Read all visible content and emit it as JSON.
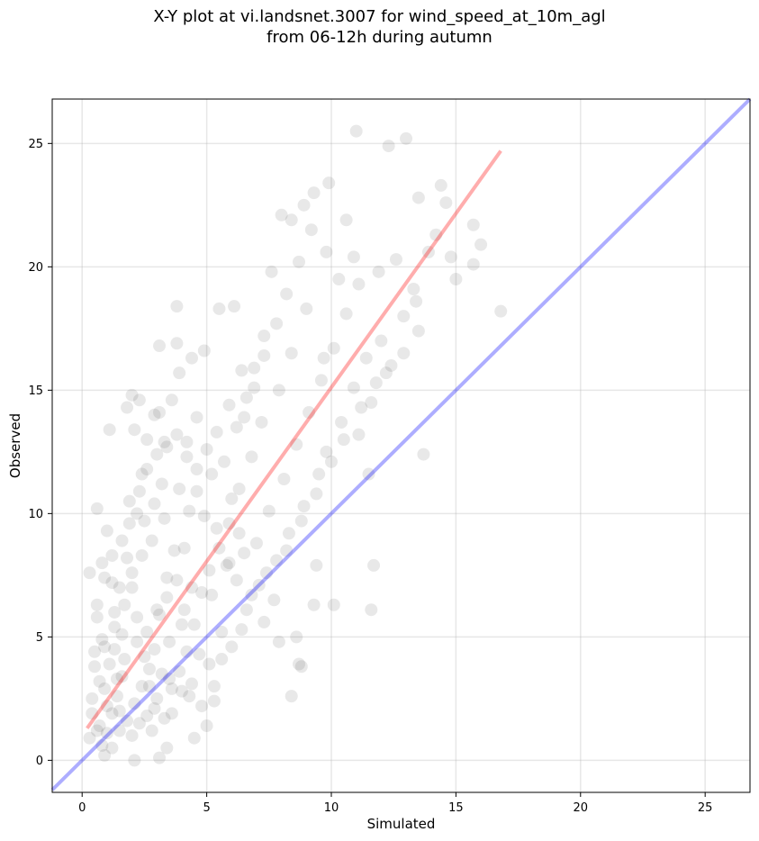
{
  "chart_data": {
    "type": "scatter",
    "title_lines": [
      "X-Y plot at vi.landsnet.3007 for wind_speed_at_10m_agl",
      "from 06-12h during autumn"
    ],
    "xlabel": "Simulated",
    "ylabel": "Observed",
    "xlim": [
      -1.2,
      26.8
    ],
    "ylim": [
      -1.3,
      26.8
    ],
    "xticks": [
      0,
      5,
      10,
      15,
      20,
      25
    ],
    "yticks": [
      0,
      5,
      10,
      15,
      20,
      25
    ],
    "grid": true,
    "point_color": "#000000",
    "point_alpha": 0.09,
    "points": [
      [
        0.3,
        0.9
      ],
      [
        0.4,
        2.5
      ],
      [
        0.5,
        3.8
      ],
      [
        0.3,
        7.6
      ],
      [
        0.6,
        6.3
      ],
      [
        0.8,
        8.0
      ],
      [
        0.6,
        10.2
      ],
      [
        1.1,
        13.4
      ],
      [
        1.0,
        9.3
      ],
      [
        1.2,
        7.2
      ],
      [
        0.9,
        4.6
      ],
      [
        0.7,
        1.4
      ],
      [
        0.9,
        0.2
      ],
      [
        1.2,
        0.5
      ],
      [
        1.5,
        2.0
      ],
      [
        1.4,
        3.3
      ],
      [
        1.6,
        5.1
      ],
      [
        1.3,
        6.0
      ],
      [
        1.8,
        8.2
      ],
      [
        1.9,
        10.5
      ],
      [
        1.8,
        14.3
      ],
      [
        2.0,
        14.8
      ],
      [
        2.3,
        14.6
      ],
      [
        2.1,
        13.4
      ],
      [
        2.6,
        13.0
      ],
      [
        2.9,
        14.0
      ],
      [
        3.1,
        14.1
      ],
      [
        3.3,
        12.9
      ],
      [
        3.6,
        14.6
      ],
      [
        3.9,
        15.7
      ],
      [
        4.4,
        16.3
      ],
      [
        4.9,
        16.6
      ],
      [
        5.5,
        18.3
      ],
      [
        6.1,
        18.4
      ],
      [
        6.4,
        15.8
      ],
      [
        3.8,
        18.4
      ],
      [
        3.8,
        16.9
      ],
      [
        3.1,
        16.8
      ],
      [
        2.4,
        11.6
      ],
      [
        2.2,
        10.0
      ],
      [
        2.0,
        7.0
      ],
      [
        2.2,
        5.8
      ],
      [
        2.5,
        4.2
      ],
      [
        2.7,
        3.0
      ],
      [
        2.3,
        1.5
      ],
      [
        2.1,
        0.0
      ],
      [
        2.8,
        1.2
      ],
      [
        3.1,
        0.1
      ],
      [
        3.4,
        0.5
      ],
      [
        3.6,
        1.9
      ],
      [
        3.2,
        3.5
      ],
      [
        3.5,
        4.8
      ],
      [
        3.0,
        6.1
      ],
      [
        3.4,
        7.4
      ],
      [
        3.7,
        8.5
      ],
      [
        3.3,
        9.8
      ],
      [
        3.9,
        11.0
      ],
      [
        4.2,
        12.3
      ],
      [
        4.6,
        13.9
      ],
      [
        4.3,
        10.1
      ],
      [
        4.1,
        8.6
      ],
      [
        4.4,
        7.0
      ],
      [
        4.0,
        5.5
      ],
      [
        4.7,
        4.3
      ],
      [
        4.3,
        2.6
      ],
      [
        4.5,
        0.9
      ],
      [
        5.0,
        1.4
      ],
      [
        5.3,
        2.4
      ],
      [
        5.1,
        3.9
      ],
      [
        5.6,
        5.2
      ],
      [
        5.2,
        6.7
      ],
      [
        5.8,
        7.9
      ],
      [
        5.4,
        9.4
      ],
      [
        6.0,
        10.6
      ],
      [
        5.7,
        12.1
      ],
      [
        6.2,
        13.5
      ],
      [
        6.6,
        14.7
      ],
      [
        6.9,
        15.9
      ],
      [
        7.3,
        17.2
      ],
      [
        7.6,
        19.8
      ],
      [
        8.0,
        22.1
      ],
      [
        8.4,
        21.9
      ],
      [
        8.9,
        22.5
      ],
      [
        9.3,
        23.0
      ],
      [
        9.9,
        23.4
      ],
      [
        10.6,
        21.9
      ],
      [
        10.9,
        20.4
      ],
      [
        11.0,
        25.5
      ],
      [
        12.3,
        24.9
      ],
      [
        13.0,
        25.2
      ],
      [
        13.5,
        22.8
      ],
      [
        14.4,
        23.3
      ],
      [
        14.6,
        22.6
      ],
      [
        15.7,
        21.7
      ],
      [
        16.0,
        20.9
      ],
      [
        15.7,
        20.1
      ],
      [
        14.8,
        20.4
      ],
      [
        15.0,
        19.5
      ],
      [
        16.8,
        18.2
      ],
      [
        13.5,
        17.4
      ],
      [
        13.4,
        18.6
      ],
      [
        12.9,
        16.5
      ],
      [
        13.7,
        12.4
      ],
      [
        12.2,
        15.7
      ],
      [
        11.6,
        14.5
      ],
      [
        11.1,
        13.2
      ],
      [
        11.5,
        11.6
      ],
      [
        11.7,
        7.9
      ],
      [
        11.6,
        6.1
      ],
      [
        10.1,
        6.3
      ],
      [
        9.3,
        6.3
      ],
      [
        9.4,
        7.9
      ],
      [
        8.4,
        2.6
      ],
      [
        8.7,
        3.9
      ],
      [
        8.8,
        3.8
      ],
      [
        8.6,
        5.0
      ],
      [
        7.9,
        4.8
      ],
      [
        7.3,
        5.6
      ],
      [
        6.6,
        6.1
      ],
      [
        6.2,
        7.3
      ],
      [
        7.0,
        8.8
      ],
      [
        7.5,
        10.1
      ],
      [
        8.1,
        11.4
      ],
      [
        8.6,
        12.8
      ],
      [
        9.1,
        14.1
      ],
      [
        9.6,
        15.4
      ],
      [
        10.1,
        16.7
      ],
      [
        10.6,
        18.1
      ],
      [
        11.1,
        19.3
      ],
      [
        11.9,
        19.8
      ],
      [
        12.6,
        20.3
      ],
      [
        9.0,
        18.3
      ],
      [
        8.4,
        16.5
      ],
      [
        7.9,
        15.0
      ],
      [
        7.2,
        13.7
      ],
      [
        6.8,
        12.3
      ],
      [
        6.3,
        11.0
      ],
      [
        5.9,
        9.6
      ],
      [
        6.5,
        8.4
      ],
      [
        7.1,
        7.1
      ],
      [
        7.7,
        6.5
      ],
      [
        8.2,
        8.5
      ],
      [
        8.8,
        9.7
      ],
      [
        9.4,
        10.8
      ],
      [
        9.8,
        12.5
      ],
      [
        10.4,
        13.7
      ],
      [
        10.9,
        15.1
      ],
      [
        11.4,
        16.3
      ],
      [
        12.0,
        17.0
      ],
      [
        9.7,
        16.3
      ],
      [
        1.0,
        1.1
      ],
      [
        1.2,
        1.9
      ],
      [
        1.4,
        2.6
      ],
      [
        1.6,
        3.4
      ],
      [
        1.1,
        3.9
      ],
      [
        0.8,
        4.9
      ],
      [
        1.3,
        5.4
      ],
      [
        1.7,
        6.3
      ],
      [
        1.5,
        7.0
      ],
      [
        2.0,
        7.6
      ],
      [
        2.4,
        8.3
      ],
      [
        2.8,
        8.9
      ],
      [
        2.5,
        9.7
      ],
      [
        2.9,
        10.4
      ],
      [
        3.2,
        11.2
      ],
      [
        2.6,
        5.2
      ],
      [
        2.9,
        4.5
      ],
      [
        3.1,
        5.9
      ],
      [
        3.4,
        6.6
      ],
      [
        3.8,
        7.3
      ],
      [
        4.1,
        6.1
      ],
      [
        4.5,
        5.5
      ],
      [
        4.8,
        6.8
      ],
      [
        5.1,
        7.7
      ],
      [
        5.5,
        8.6
      ],
      [
        5.9,
        8.0
      ],
      [
        6.3,
        9.2
      ],
      [
        4.9,
        9.9
      ],
      [
        4.6,
        10.9
      ],
      [
        5.2,
        11.6
      ],
      [
        1.8,
        1.6
      ],
      [
        2.1,
        2.3
      ],
      [
        2.4,
        3.0
      ],
      [
        2.7,
        3.7
      ],
      [
        3.0,
        2.5
      ],
      [
        3.3,
        1.7
      ],
      [
        3.6,
        2.9
      ],
      [
        3.9,
        3.6
      ],
      [
        4.2,
        4.4
      ],
      [
        2.2,
        4.8
      ],
      [
        1.7,
        4.1
      ],
      [
        1.3,
        4.5
      ],
      [
        0.9,
        2.9
      ],
      [
        1.0,
        2.2
      ],
      [
        1.5,
        1.2
      ],
      [
        2.0,
        1.0
      ],
      [
        2.6,
        1.8
      ],
      [
        2.9,
        2.1
      ],
      [
        3.5,
        3.3
      ],
      [
        4.0,
        2.8
      ],
      [
        4.4,
        3.1
      ],
      [
        4.8,
        2.2
      ],
      [
        5.3,
        3.0
      ],
      [
        5.6,
        4.1
      ],
      [
        6.0,
        4.6
      ],
      [
        6.4,
        5.3
      ],
      [
        6.8,
        6.7
      ],
      [
        7.4,
        7.6
      ],
      [
        7.8,
        8.1
      ],
      [
        8.3,
        9.2
      ],
      [
        8.9,
        10.3
      ],
      [
        9.5,
        11.6
      ],
      [
        10.0,
        12.1
      ],
      [
        10.5,
        13.0
      ],
      [
        11.2,
        14.3
      ],
      [
        11.8,
        15.3
      ],
      [
        12.4,
        16.0
      ],
      [
        12.9,
        18.0
      ],
      [
        13.3,
        19.1
      ],
      [
        13.9,
        20.6
      ],
      [
        14.2,
        21.3
      ],
      [
        10.3,
        19.5
      ],
      [
        9.8,
        20.6
      ],
      [
        9.2,
        21.5
      ],
      [
        8.7,
        20.2
      ],
      [
        8.2,
        18.9
      ],
      [
        7.8,
        17.7
      ],
      [
        7.3,
        16.4
      ],
      [
        6.9,
        15.1
      ],
      [
        6.5,
        13.9
      ],
      [
        5.9,
        14.4
      ],
      [
        5.4,
        13.3
      ],
      [
        5.0,
        12.6
      ],
      [
        4.6,
        11.8
      ],
      [
        4.2,
        12.9
      ],
      [
        3.8,
        13.2
      ],
      [
        3.4,
        12.7
      ],
      [
        3.0,
        12.4
      ],
      [
        2.6,
        11.8
      ],
      [
        2.3,
        10.9
      ],
      [
        1.9,
        9.6
      ],
      [
        1.6,
        8.9
      ],
      [
        1.2,
        8.3
      ],
      [
        0.9,
        7.4
      ],
      [
        0.6,
        5.8
      ],
      [
        0.5,
        4.4
      ],
      [
        0.7,
        3.2
      ],
      [
        0.4,
        1.9
      ],
      [
        0.6,
        1.2
      ],
      [
        0.8,
        0.6
      ]
    ],
    "fit_line": {
      "color": "#ff0000",
      "alpha": 0.32,
      "x": [
        0.2,
        16.8
      ],
      "y": [
        1.3,
        24.7
      ]
    },
    "identity_line": {
      "color": "#0000ff",
      "alpha": 0.32,
      "x": [
        -1.2,
        26.8
      ],
      "y": [
        -1.2,
        26.8
      ]
    }
  }
}
